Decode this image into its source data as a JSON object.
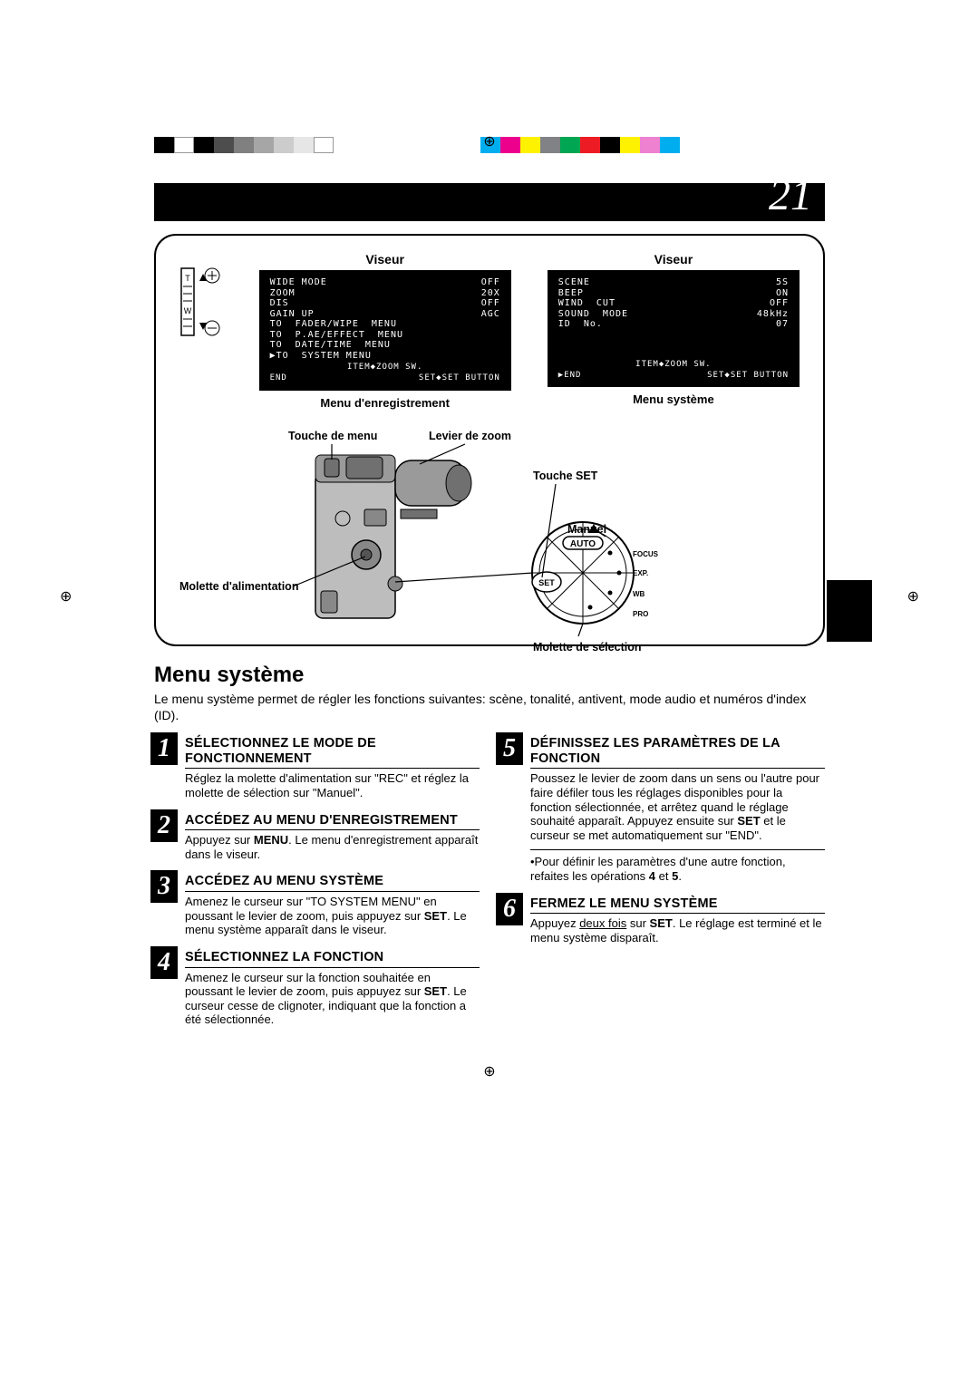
{
  "colorBars": {
    "left": [
      "#000000",
      "#ffffff",
      "#000000",
      "#4d4d4d",
      "#808080",
      "#a6a6a6",
      "#cccccc",
      "#e6e6e6",
      "#ffffff"
    ],
    "right": [
      "#00aeef",
      "#ec008c",
      "#fff200",
      "#808285",
      "#00a651",
      "#ed1c24",
      "#000000",
      "#fff200",
      "#ee82d0",
      "#00aeef"
    ]
  },
  "pageNumber": "21",
  "figure": {
    "viseurLabel": "Viseur",
    "recMenuCaption": "Menu d'enregistrement",
    "sysMenuCaption": "Menu système",
    "recMenu": {
      "rows": [
        [
          "WIDE MODE",
          "OFF"
        ],
        [
          "ZOOM",
          "20X"
        ],
        [
          "DIS",
          "OFF"
        ],
        [
          "GAIN UP",
          "AGC"
        ],
        [
          "TO  FADER/WIPE  MENU",
          ""
        ],
        [
          "TO  P.AE/EFFECT  MENU",
          ""
        ],
        [
          "TO  DATE/TIME  MENU",
          ""
        ],
        [
          "▶TO  SYSTEM MENU",
          ""
        ]
      ],
      "bottom": "ITEM◆ZOOM  SW.",
      "endLeft": "END",
      "endRight": "SET◆SET  BUTTON"
    },
    "sysMenu": {
      "rows": [
        [
          "SCENE",
          "5S"
        ],
        [
          "BEEP",
          "ON"
        ],
        [
          "WIND  CUT",
          "OFF"
        ],
        [
          "SOUND  MODE",
          "48kHz"
        ],
        [
          "ID  No.",
          "07"
        ]
      ],
      "bottom": "ITEM◆ZOOM  SW.",
      "endLeft": "▶END",
      "endRight": "SET◆SET  BUTTON"
    },
    "labels": {
      "toucheMenu": "Touche de menu",
      "levier": "Levier de zoom",
      "toucheSet": "Touche SET",
      "manuel": "Manuel",
      "moletteAlim": "Molette d'alimentation",
      "moletteSel": "Molette de sélection",
      "auto": "AUTO",
      "focus": "FOCUS",
      "exp": "EXP.",
      "wb": "WB",
      "pro": "PRO",
      "set": "SET"
    }
  },
  "section": {
    "title": "Menu système",
    "intro": "Le menu système permet de régler les fonctions suivantes: scène, tonalité, antivent, mode audio et numéros d'index (ID)."
  },
  "steps": {
    "s1": {
      "title": "SÉLECTIONNEZ LE MODE DE FONCTIONNEMENT",
      "body_a": "Réglez la molette d'alimentation sur \"REC\" et réglez la molette de sélection sur \"Manuel\"."
    },
    "s2": {
      "title": "ACCÉDEZ AU MENU D'ENREGISTREMENT",
      "body_a": "Appuyez sur ",
      "body_b": ". Le menu d'enregistrement apparaît dans le viseur."
    },
    "s3": {
      "title": "ACCÉDEZ AU MENU SYSTÈME",
      "body_a": "Amenez le curseur sur \"TO SYSTEM MENU\" en poussant le levier de zoom, puis appuyez sur ",
      "body_b": ". Le menu système apparaît dans le viseur."
    },
    "s4": {
      "title": "SÉLECTIONNEZ LA FONCTION",
      "body_a": "Amenez le curseur sur la fonction souhaitée en poussant le levier de zoom, puis appuyez sur ",
      "body_b": ". Le curseur cesse de clignoter, indiquant que la fonction a été sélectionnée."
    },
    "s5": {
      "title": "DÉFINISSEZ LES PARAMÈTRES DE LA FONCTION",
      "body_a": "Poussez le levier de zoom dans un sens ou l'autre pour faire défiler tous les réglages disponibles pour la fonction sélectionnée, et arrêtez quand le réglage souhaité apparaît. Appuyez ensuite sur ",
      "body_b": " et le curseur se met automatiquement sur \"END\".",
      "note_a": "•Pour définir les paramètres d'une autre fonction, refaites les opérations ",
      "note_b": " et ",
      "note_c": "."
    },
    "s6": {
      "title": "FERMEZ LE MENU SYSTÈME",
      "body_a": "Appuyez ",
      "body_u": "deux fois",
      "body_b": " sur ",
      "body_c": ". Le réglage est terminé et le menu système disparaît."
    },
    "bold": {
      "menu": "MENU",
      "set": "SET",
      "four": "4",
      "five": "5"
    }
  }
}
